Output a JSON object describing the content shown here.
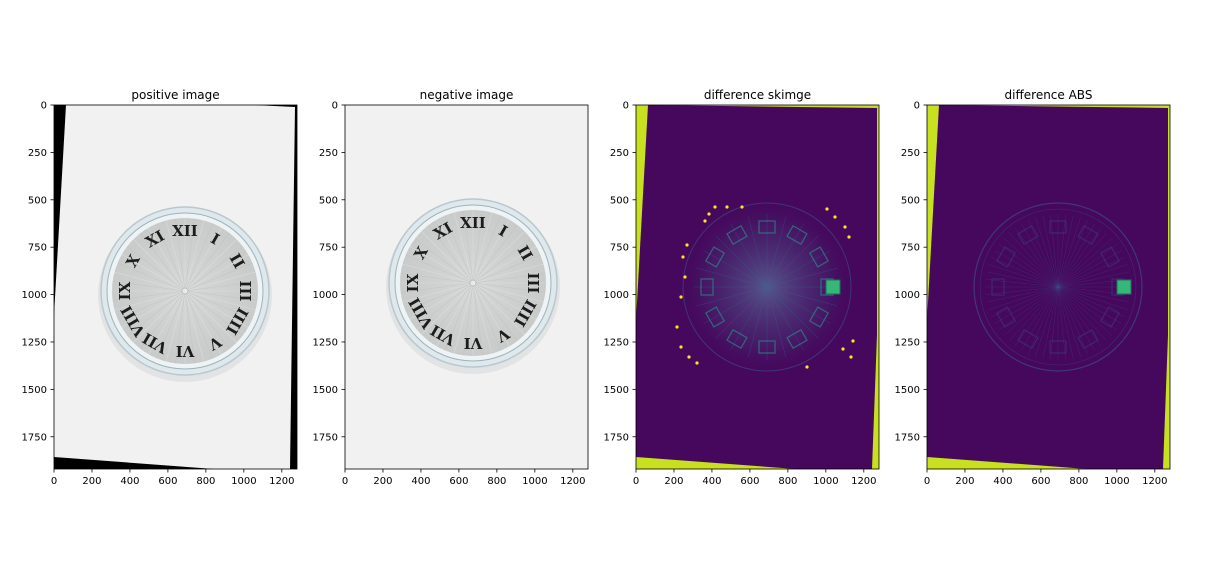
{
  "figure": {
    "background": "#ffffff"
  },
  "colors": {
    "viridis_dark": "#440154",
    "viridis_bg": "#46085c",
    "viridis_blue": "#3b528b",
    "viridis_teal": "#2a9d8f",
    "viridis_green": "#35b779",
    "viridis_yellow": "#fde725",
    "viridis_lime": "#c8e020",
    "paper_white": "#f2f1f2",
    "clock_rim": "#dfe8ec",
    "clock_face": "#c9cbca",
    "numeral": "#1c1c1c"
  },
  "chart_data": [
    {
      "type": "image",
      "title": "positive image",
      "xlim": [
        0,
        1280
      ],
      "ylim": [
        1920,
        0
      ],
      "xticks": [
        0,
        200,
        400,
        600,
        800,
        1000,
        1200
      ],
      "yticks": [
        0,
        250,
        500,
        750,
        1000,
        1250,
        1500,
        1750
      ],
      "content": "photo-rotated",
      "numerals": [
        "XII",
        "I",
        "II",
        "III",
        "IIII",
        "V",
        "VI",
        "VII",
        "VIII",
        "IX",
        "X",
        "XI"
      ]
    },
    {
      "type": "image",
      "title": "negative image",
      "xlim": [
        0,
        1280
      ],
      "ylim": [
        1920,
        0
      ],
      "xticks": [
        0,
        200,
        400,
        600,
        800,
        1000,
        1200
      ],
      "yticks": [
        0,
        250,
        500,
        750,
        1000,
        1250,
        1500,
        1750
      ],
      "content": "photo",
      "numerals": [
        "XII",
        "I",
        "II",
        "III",
        "IIII",
        "V",
        "VI",
        "VII",
        "VIII",
        "IX",
        "X",
        "XI"
      ]
    },
    {
      "type": "image",
      "title": "difference skimge",
      "xlim": [
        0,
        1280
      ],
      "ylim": [
        1920,
        0
      ],
      "xticks": [
        0,
        200,
        400,
        600,
        800,
        1000,
        1200
      ],
      "yticks": [
        0,
        250,
        500,
        750,
        1000,
        1250,
        1500,
        1750
      ],
      "content": "diff-skimage",
      "colormap": "viridis"
    },
    {
      "type": "image",
      "title": "difference ABS",
      "xlim": [
        0,
        1280
      ],
      "ylim": [
        1920,
        0
      ],
      "xticks": [
        0,
        200,
        400,
        600,
        800,
        1000,
        1200
      ],
      "yticks": [
        0,
        250,
        500,
        750,
        1000,
        1250,
        1500,
        1750
      ],
      "content": "diff-abs",
      "colormap": "viridis"
    }
  ]
}
